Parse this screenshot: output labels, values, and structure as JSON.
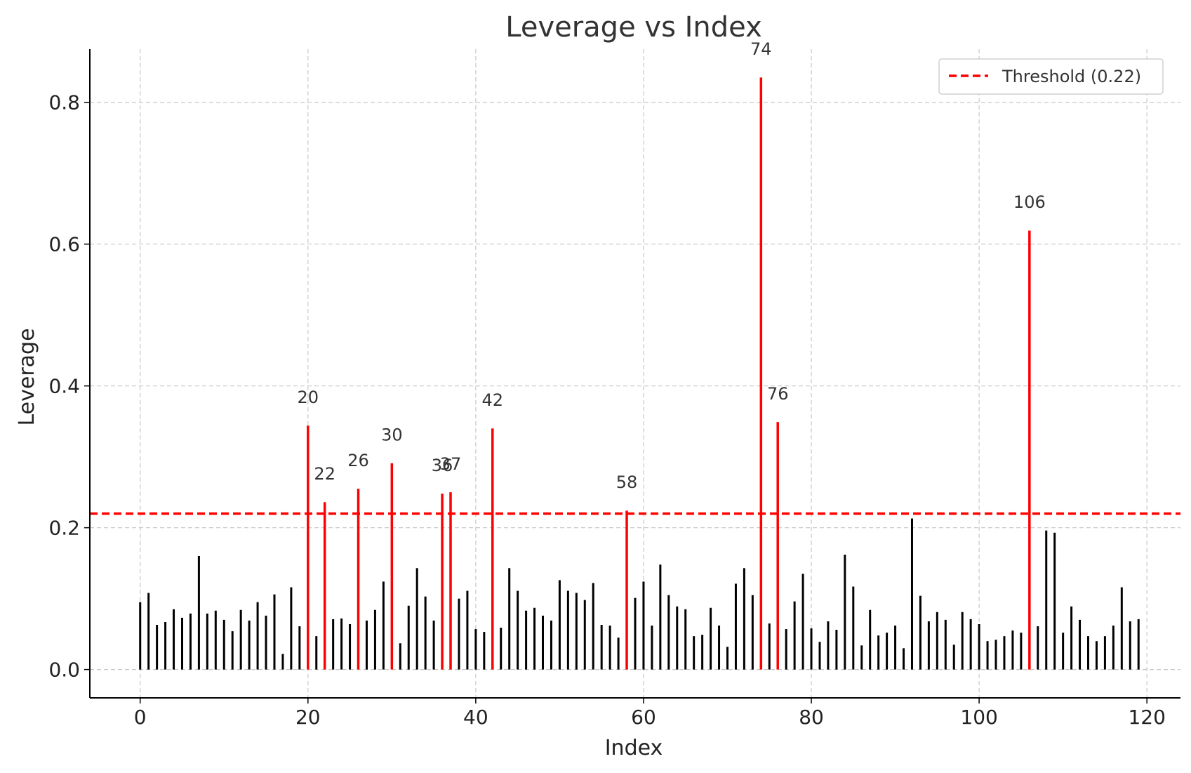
{
  "chart_data": {
    "type": "bar",
    "title": "Leverage vs Index",
    "xlabel": "Index",
    "ylabel": "Leverage",
    "xlim": [
      -6,
      124
    ],
    "ylim": [
      -0.04,
      0.875
    ],
    "xticks": [
      0,
      20,
      40,
      60,
      80,
      100,
      120
    ],
    "yticks": [
      0.0,
      0.2,
      0.4,
      0.6,
      0.8
    ],
    "grid": true,
    "legend_position": "top-right",
    "threshold": {
      "value": 0.22,
      "label": "Threshold (0.22)",
      "color": "#ff0000"
    },
    "normal_color": "#000000",
    "flagged_color": "#ff0000",
    "x": [
      0,
      1,
      2,
      3,
      4,
      5,
      6,
      7,
      8,
      9,
      10,
      11,
      12,
      13,
      14,
      15,
      16,
      17,
      18,
      19,
      20,
      21,
      22,
      23,
      24,
      25,
      26,
      27,
      28,
      29,
      30,
      31,
      32,
      33,
      34,
      35,
      36,
      37,
      38,
      39,
      40,
      41,
      42,
      43,
      44,
      45,
      46,
      47,
      48,
      49,
      50,
      51,
      52,
      53,
      54,
      55,
      56,
      57,
      58,
      59,
      60,
      61,
      62,
      63,
      64,
      65,
      66,
      67,
      68,
      69,
      70,
      71,
      72,
      73,
      74,
      75,
      76,
      77,
      78,
      79,
      80,
      81,
      82,
      83,
      84,
      85,
      86,
      87,
      88,
      89,
      90,
      91,
      92,
      93,
      94,
      95,
      96,
      97,
      98,
      99,
      100,
      101,
      102,
      103,
      104,
      105,
      106,
      107,
      108,
      109,
      110,
      111,
      112,
      113,
      114,
      115,
      116,
      117,
      118,
      119
    ],
    "values": [
      0.095,
      0.108,
      0.063,
      0.067,
      0.085,
      0.073,
      0.079,
      0.16,
      0.079,
      0.083,
      0.07,
      0.054,
      0.084,
      0.069,
      0.095,
      0.076,
      0.106,
      0.022,
      0.116,
      0.061,
      0.344,
      0.047,
      0.236,
      0.071,
      0.072,
      0.064,
      0.255,
      0.069,
      0.084,
      0.124,
      0.291,
      0.037,
      0.09,
      0.143,
      0.103,
      0.069,
      0.248,
      0.25,
      0.1,
      0.111,
      0.057,
      0.053,
      0.34,
      0.059,
      0.143,
      0.111,
      0.083,
      0.087,
      0.076,
      0.069,
      0.126,
      0.111,
      0.108,
      0.098,
      0.122,
      0.063,
      0.062,
      0.045,
      0.224,
      0.101,
      0.124,
      0.062,
      0.148,
      0.105,
      0.089,
      0.085,
      0.047,
      0.049,
      0.087,
      0.062,
      0.032,
      0.121,
      0.143,
      0.105,
      0.835,
      0.065,
      0.349,
      0.057,
      0.096,
      0.135,
      0.058,
      0.039,
      0.068,
      0.056,
      0.162,
      0.117,
      0.034,
      0.084,
      0.048,
      0.052,
      0.062,
      0.03,
      0.213,
      0.104,
      0.068,
      0.081,
      0.07,
      0.035,
      0.081,
      0.071,
      0.064,
      0.04,
      0.042,
      0.047,
      0.055,
      0.052,
      0.619,
      0.061,
      0.196,
      0.193,
      0.052,
      0.089,
      0.07,
      0.047,
      0.04,
      0.047,
      0.062,
      0.116,
      0.068,
      0.071
    ],
    "flagged_indices": [
      20,
      22,
      26,
      30,
      36,
      37,
      42,
      58,
      74,
      76,
      106
    ],
    "annotations": [
      "20",
      "22",
      "26",
      "30",
      "36",
      "37",
      "42",
      "58",
      "74",
      "76",
      "106"
    ]
  }
}
